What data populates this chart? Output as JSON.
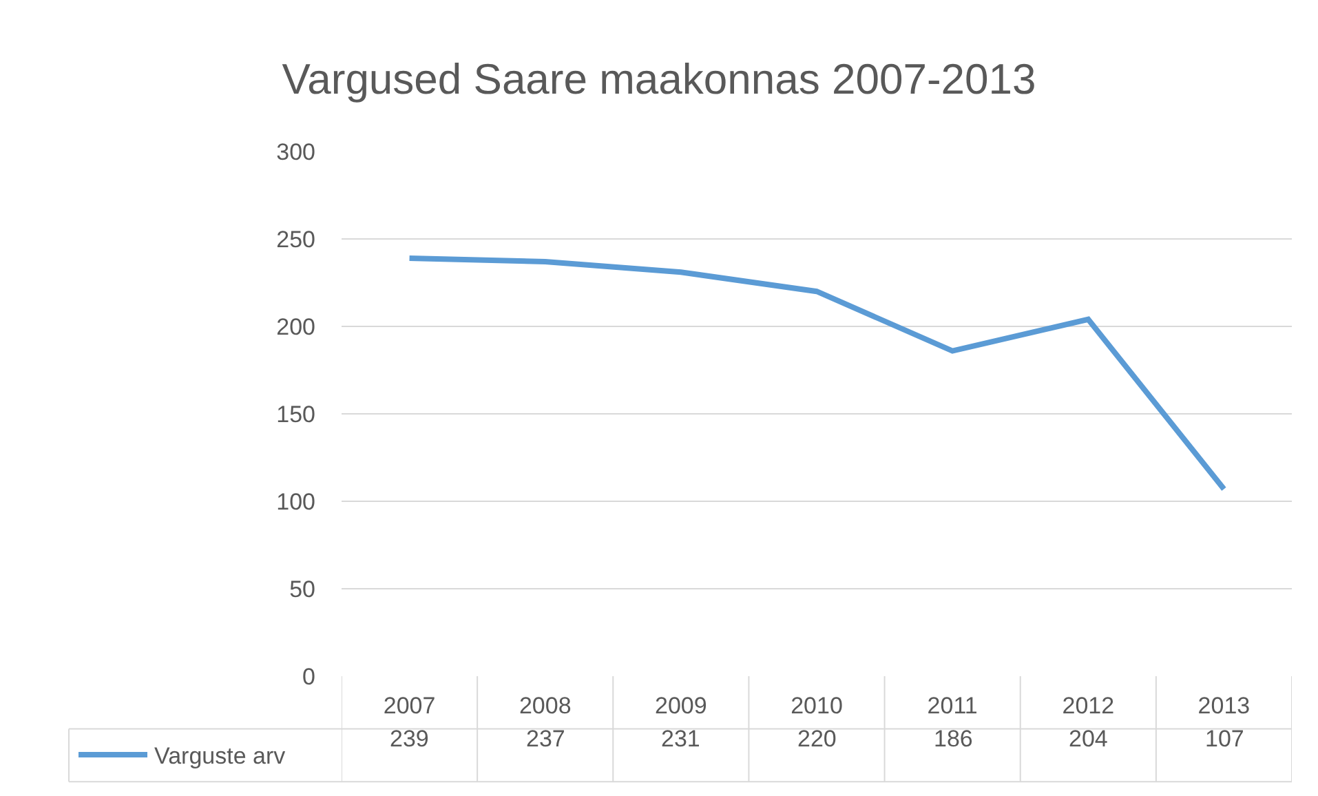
{
  "chart_data": {
    "type": "line",
    "title": "Vargused Saare maakonnas 2007-2013",
    "categories": [
      "2007",
      "2008",
      "2009",
      "2010",
      "2011",
      "2012",
      "2013"
    ],
    "series": [
      {
        "name": "Varguste arv",
        "color": "#5b9bd5",
        "values": [
          239,
          237,
          231,
          220,
          186,
          204,
          107
        ]
      }
    ],
    "ylim": [
      0,
      300
    ],
    "yticks": [
      0,
      50,
      100,
      150,
      200,
      250,
      300
    ],
    "grid": "y",
    "legend": "bottom left",
    "marker": "none",
    "line_style": "solid",
    "data_labels": true
  }
}
